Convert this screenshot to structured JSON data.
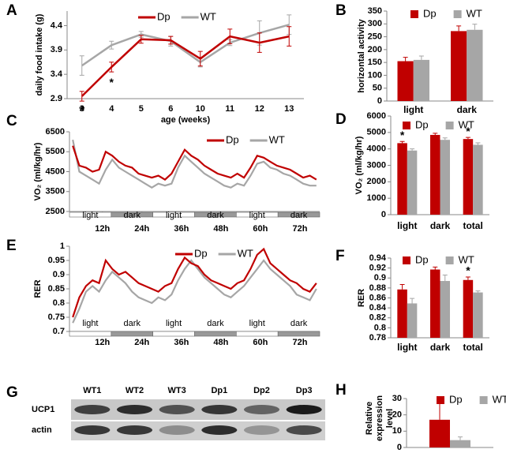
{
  "chart_data": [
    {
      "panel": "A",
      "type": "line",
      "ylabel": "daily food intake (g)",
      "xlabel": "age (weeks)",
      "categories": [
        3,
        4,
        5,
        6,
        10,
        11,
        12,
        13
      ],
      "series": [
        {
          "name": "Dp",
          "color": "#c00000",
          "values": [
            2.95,
            3.55,
            4.12,
            4.1,
            3.72,
            4.18,
            4.05,
            4.18
          ],
          "errors": [
            0.1,
            0.1,
            0.08,
            0.08,
            0.15,
            0.15,
            0.2,
            0.2
          ]
        },
        {
          "name": "WT",
          "color": "#a6a6a6",
          "values": [
            3.58,
            4.0,
            4.22,
            4.08,
            3.65,
            4.05,
            4.25,
            4.42
          ],
          "errors": [
            0.2,
            0.08,
            0.06,
            0.1,
            0.1,
            0.06,
            0.25,
            0.2
          ]
        }
      ],
      "significance": [
        "*",
        "*",
        null,
        null,
        null,
        null,
        null,
        null
      ],
      "ylim": [
        2.9,
        4.7
      ],
      "yticks": [
        2.9,
        3.4,
        3.9,
        4.4
      ]
    },
    {
      "panel": "B",
      "type": "bar",
      "ylabel": "horizontal activity",
      "categories": [
        "light",
        "dark"
      ],
      "series": [
        {
          "name": "Dp",
          "color": "#c00000",
          "values": [
            155,
            272
          ],
          "errors": [
            15,
            20
          ]
        },
        {
          "name": "WT",
          "color": "#a6a6a6",
          "values": [
            160,
            277
          ],
          "errors": [
            15,
            22
          ]
        }
      ],
      "ylim": [
        0,
        350
      ],
      "yticks": [
        0,
        50,
        100,
        150,
        200,
        250,
        300,
        350
      ]
    },
    {
      "panel": "C",
      "type": "line",
      "ylabel": "VO₂ (ml/kg/hr)",
      "x": [
        3,
        5,
        7,
        9,
        11,
        13,
        15,
        17,
        19,
        21,
        23,
        25,
        27,
        29,
        31,
        33,
        35,
        37,
        39,
        41,
        43,
        45,
        47,
        49,
        51,
        53,
        55,
        57,
        59,
        61,
        63,
        65,
        67,
        69,
        71,
        73,
        75,
        77
      ],
      "series": [
        {
          "name": "Dp",
          "color": "#c00000",
          "values": [
            5800,
            4800,
            4700,
            4500,
            4600,
            5500,
            5300,
            5000,
            4800,
            4700,
            4400,
            4300,
            4200,
            4300,
            4100,
            4400,
            5000,
            5600,
            5300,
            5100,
            4800,
            4600,
            4400,
            4300,
            4200,
            4400,
            4200,
            4700,
            5300,
            5200,
            5000,
            4800,
            4700,
            4600,
            4400,
            4200,
            4300,
            4100
          ]
        },
        {
          "name": "WT",
          "color": "#a6a6a6",
          "values": [
            6100,
            4500,
            4300,
            4100,
            3900,
            4600,
            5100,
            4700,
            4500,
            4300,
            4100,
            3900,
            3700,
            3900,
            3800,
            3900,
            4700,
            5300,
            5000,
            4700,
            4400,
            4200,
            4000,
            3800,
            3700,
            3900,
            3800,
            4300,
            4900,
            5000,
            4700,
            4600,
            4400,
            4300,
            4100,
            3900,
            3800,
            3800
          ]
        }
      ],
      "phases": [
        "light",
        "dark",
        "light",
        "dark",
        "light",
        "dark"
      ],
      "xlim": [
        2,
        78
      ],
      "xticks": [
        {
          "value": 12,
          "label": "12h"
        },
        {
          "value": 24,
          "label": "24h"
        },
        {
          "value": 36,
          "label": "36h"
        },
        {
          "value": 48,
          "label": "48h"
        },
        {
          "value": 60,
          "label": "60h"
        },
        {
          "value": 72,
          "label": "72h"
        }
      ],
      "ylim": [
        2500,
        6500
      ],
      "yticks": [
        2500,
        3500,
        4500,
        5500,
        6500
      ]
    },
    {
      "panel": "D",
      "type": "bar",
      "ylabel": "VO₂ (ml/kg/hr)",
      "categories": [
        "light",
        "dark",
        "total"
      ],
      "series": [
        {
          "name": "Dp",
          "color": "#c00000",
          "values": [
            4350,
            4850,
            4600
          ],
          "errors": [
            100,
            100,
            100
          ]
        },
        {
          "name": "WT",
          "color": "#a6a6a6",
          "values": [
            3900,
            4550,
            4250
          ],
          "errors": [
            100,
            120,
            120
          ]
        }
      ],
      "significance": [
        "*",
        null,
        "*"
      ],
      "ylim": [
        0,
        6000
      ],
      "yticks": [
        0,
        1000,
        2000,
        3000,
        4000,
        5000,
        6000
      ]
    },
    {
      "panel": "E",
      "type": "line",
      "ylabel": "RER",
      "x": [
        3,
        5,
        7,
        9,
        11,
        13,
        15,
        17,
        19,
        21,
        23,
        25,
        27,
        29,
        31,
        33,
        35,
        37,
        39,
        41,
        43,
        45,
        47,
        49,
        51,
        53,
        55,
        57,
        59,
        61,
        63,
        65,
        67,
        69,
        71,
        73,
        75,
        77
      ],
      "series": [
        {
          "name": "Dp",
          "color": "#c00000",
          "values": [
            0.75,
            0.82,
            0.86,
            0.88,
            0.87,
            0.95,
            0.92,
            0.9,
            0.91,
            0.89,
            0.87,
            0.86,
            0.85,
            0.84,
            0.86,
            0.87,
            0.92,
            0.96,
            0.94,
            0.93,
            0.9,
            0.88,
            0.87,
            0.86,
            0.85,
            0.87,
            0.88,
            0.92,
            0.97,
            0.99,
            0.94,
            0.92,
            0.9,
            0.88,
            0.87,
            0.85,
            0.84,
            0.87
          ]
        },
        {
          "name": "WT",
          "color": "#a6a6a6",
          "values": [
            0.73,
            0.78,
            0.84,
            0.86,
            0.84,
            0.88,
            0.91,
            0.89,
            0.87,
            0.84,
            0.82,
            0.81,
            0.8,
            0.82,
            0.81,
            0.83,
            0.88,
            0.92,
            0.95,
            0.92,
            0.89,
            0.87,
            0.85,
            0.83,
            0.82,
            0.84,
            0.86,
            0.89,
            0.92,
            0.95,
            0.92,
            0.9,
            0.88,
            0.86,
            0.83,
            0.82,
            0.81,
            0.85
          ]
        }
      ],
      "phases": [
        "light",
        "dark",
        "light",
        "dark",
        "light",
        "dark"
      ],
      "xlim": [
        2,
        78
      ],
      "xticks": [
        {
          "value": 12,
          "label": "12h"
        },
        {
          "value": 24,
          "label": "24h"
        },
        {
          "value": 36,
          "label": "36h"
        },
        {
          "value": 48,
          "label": "48h"
        },
        {
          "value": 60,
          "label": "60h"
        },
        {
          "value": 72,
          "label": "72h"
        }
      ],
      "ylim": [
        0.7,
        1.0
      ],
      "yticks": [
        0.7,
        0.75,
        0.8,
        0.85,
        0.9,
        0.95,
        1
      ]
    },
    {
      "panel": "F",
      "type": "bar",
      "ylabel": "RER",
      "categories": [
        "light",
        "dark",
        "total"
      ],
      "series": [
        {
          "name": "Dp",
          "color": "#c00000",
          "values": [
            0.877,
            0.917,
            0.896
          ],
          "errors": [
            0.01,
            0.005,
            0.006
          ]
        },
        {
          "name": "WT",
          "color": "#a6a6a6",
          "values": [
            0.849,
            0.894,
            0.871
          ],
          "errors": [
            0.01,
            0.012,
            0.003
          ]
        }
      ],
      "significance": [
        null,
        null,
        "*"
      ],
      "ylim": [
        0.78,
        0.94
      ],
      "yticks": [
        0.78,
        0.8,
        0.82,
        0.84,
        0.86,
        0.88,
        0.9,
        0.92,
        0.94
      ]
    },
    {
      "panel": "G",
      "type": "blot",
      "lanes": [
        "WT1",
        "WT2",
        "WT3",
        "Dp1",
        "Dp2",
        "Dp3"
      ],
      "rows": [
        "UCP1",
        "actin"
      ]
    },
    {
      "panel": "H",
      "type": "bar",
      "ylabel_lines": [
        "Relative",
        "expression",
        "level"
      ],
      "categories": [
        null
      ],
      "series": [
        {
          "name": "Dp",
          "color": "#c00000",
          "values": [
            17
          ],
          "errors": [
            10.5
          ]
        },
        {
          "name": "WT",
          "color": "#a6a6a6",
          "values": [
            4.5
          ],
          "errors": [
            2
          ]
        }
      ],
      "ylim": [
        0,
        30
      ],
      "yticks": [
        0,
        10,
        20,
        30
      ]
    }
  ]
}
